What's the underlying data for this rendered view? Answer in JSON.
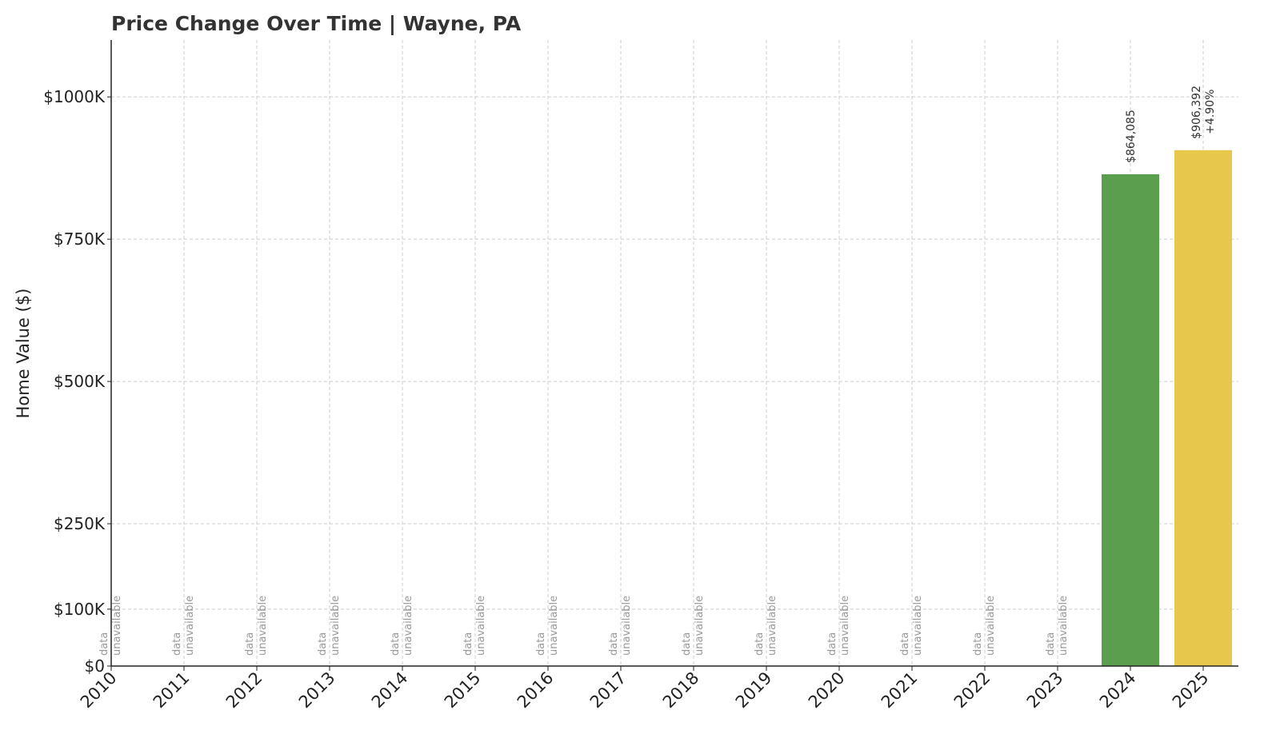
{
  "chart_data": {
    "type": "bar",
    "title": "Price Change Over Time | Wayne, PA",
    "y_label": "Home Value ($)",
    "categories": [
      "2010",
      "2011",
      "2012",
      "2013",
      "2014",
      "2015",
      "2016",
      "2017",
      "2018",
      "2019",
      "2020",
      "2021",
      "2022",
      "2023",
      "2024",
      "2025"
    ],
    "values": [
      null,
      null,
      null,
      null,
      null,
      null,
      null,
      null,
      null,
      null,
      null,
      null,
      null,
      null,
      864085,
      906392
    ],
    "value_labels": [
      "data unavailable",
      "data unavailable",
      "data unavailable",
      "data unavailable",
      "data unavailable",
      "data unavailable",
      "data unavailable",
      "data unavailable",
      "data unavailable",
      "data unavailable",
      "data unavailable",
      "data unavailable",
      "data unavailable",
      "data unavailable",
      "$864,085",
      "$906,392"
    ],
    "change_labels": [
      null,
      null,
      null,
      null,
      null,
      null,
      null,
      null,
      null,
      null,
      null,
      null,
      null,
      null,
      null,
      "+4.90%"
    ],
    "colors": [
      null,
      null,
      null,
      null,
      null,
      null,
      null,
      null,
      null,
      null,
      null,
      null,
      null,
      null,
      "#5a9e4e",
      "#e8c84a"
    ],
    "ylim": [
      0,
      1100000
    ],
    "yticks": [
      {
        "value": 0,
        "label": "$0"
      },
      {
        "value": 100000,
        "label": "$100K"
      },
      {
        "value": 250000,
        "label": "$250K"
      },
      {
        "value": 500000,
        "label": "$500K"
      },
      {
        "value": 750000,
        "label": "$750K"
      },
      {
        "value": 1000000,
        "label": "$1000K"
      }
    ],
    "grid": true
  }
}
